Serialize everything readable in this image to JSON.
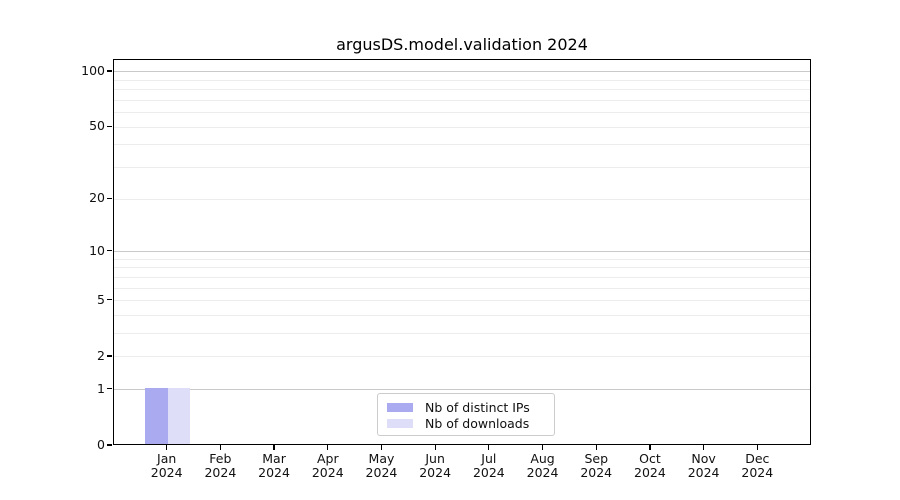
{
  "chart_data": {
    "type": "bar",
    "title": "argusDS.model.validation 2024",
    "categories": [
      "Jan",
      "Feb",
      "Mar",
      "Apr",
      "May",
      "Jun",
      "Jul",
      "Aug",
      "Sep",
      "Oct",
      "Nov",
      "Dec"
    ],
    "category_year": "2024",
    "series": [
      {
        "name": "Nb of distinct IPs",
        "color": "#aaaaf0",
        "values": [
          1,
          0,
          0,
          0,
          0,
          0,
          0,
          0,
          0,
          0,
          0,
          0
        ]
      },
      {
        "name": "Nb of downloads",
        "color": "#dedef8",
        "values": [
          1,
          0,
          0,
          0,
          0,
          0,
          0,
          0,
          0,
          0,
          0,
          0
        ]
      }
    ],
    "xlabel": "",
    "ylabel": "",
    "yscale": "log1p",
    "ylim": [
      0,
      116
    ],
    "yticks": [
      0,
      1,
      2,
      5,
      10,
      20,
      50,
      100
    ],
    "major_gridlines": [
      1,
      10,
      100
    ],
    "minor_gridlines": [
      2,
      3,
      4,
      5,
      6,
      7,
      8,
      9,
      20,
      30,
      40,
      50,
      60,
      70,
      80,
      90
    ],
    "grid": true,
    "legend_position": "lower center inside"
  },
  "colors": {
    "major_grid": "#c9c9c9",
    "minor_grid": "#ededed",
    "spine": "#000000",
    "tick_text": "#111111",
    "background": "#ffffff",
    "legend_border": "#cccccc"
  }
}
